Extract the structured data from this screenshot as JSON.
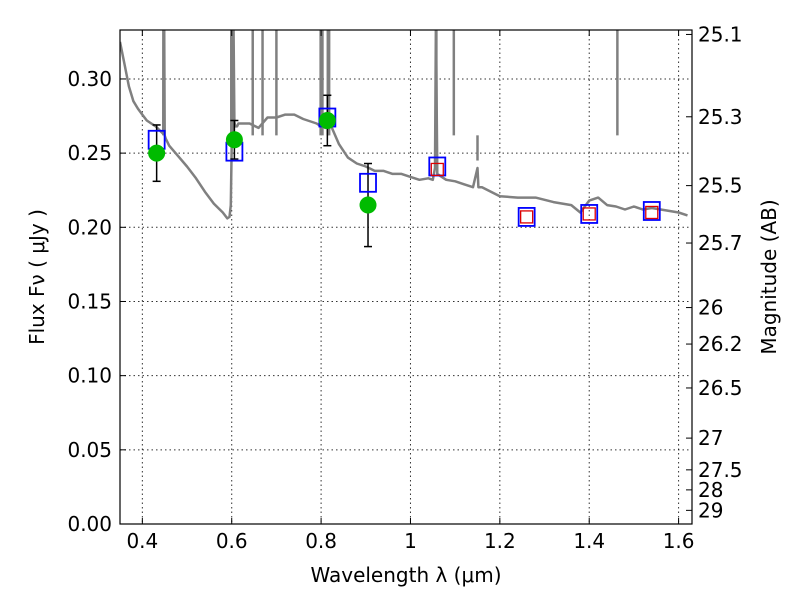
{
  "chart_data": {
    "type": "scatter",
    "xlabel": "Wavelength  λ (μm)",
    "ylabel": "Flux  Fν  ( μJy )",
    "ylabel_right": "Magnitude (AB)",
    "xlim": [
      0.35,
      1.63
    ],
    "ylim": [
      0.0,
      0.333
    ],
    "grid": true,
    "x_ticks": [
      {
        "value": 0.4,
        "label": "0.4"
      },
      {
        "value": 0.6,
        "label": "0.6"
      },
      {
        "value": 0.8,
        "label": "0.8"
      },
      {
        "value": 1.0,
        "label": "1"
      },
      {
        "value": 1.2,
        "label": "1.2"
      },
      {
        "value": 1.4,
        "label": "1.4"
      },
      {
        "value": 1.6,
        "label": "1.6"
      }
    ],
    "y_ticks": [
      {
        "value": 0.0,
        "label": "0.00"
      },
      {
        "value": 0.05,
        "label": "0.05"
      },
      {
        "value": 0.1,
        "label": "0.10"
      },
      {
        "value": 0.15,
        "label": "0.15"
      },
      {
        "value": 0.2,
        "label": "0.20"
      },
      {
        "value": 0.25,
        "label": "0.25"
      },
      {
        "value": 0.3,
        "label": "0.30"
      }
    ],
    "right_ticks": [
      {
        "flux": 0.33,
        "label": "25.1"
      },
      {
        "flux": 0.2745,
        "label": "25.3"
      },
      {
        "flux": 0.2281,
        "label": "25.5"
      },
      {
        "flux": 0.1894,
        "label": "25.7"
      },
      {
        "flux": 0.1459,
        "label": "26"
      },
      {
        "flux": 0.1213,
        "label": "26.2"
      },
      {
        "flux": 0.0917,
        "label": "26.5"
      },
      {
        "flux": 0.0579,
        "label": "27"
      },
      {
        "flux": 0.0365,
        "label": "27.5"
      },
      {
        "flux": 0.023,
        "label": "28"
      },
      {
        "flux": 0.0092,
        "label": "29"
      }
    ],
    "series": [
      {
        "kind": "model_spectrum",
        "color": "#808080",
        "x": [
          0.35,
          0.36,
          0.37,
          0.38,
          0.39,
          0.4,
          0.41,
          0.42,
          0.43,
          0.44,
          0.447,
          0.448,
          0.449,
          0.45,
          0.452,
          0.46,
          0.48,
          0.5,
          0.52,
          0.54,
          0.56,
          0.58,
          0.59,
          0.595,
          0.598,
          0.6,
          0.602,
          0.604,
          0.606,
          0.608,
          0.612,
          0.615,
          0.62,
          0.64,
          0.66,
          0.68,
          0.7,
          0.72,
          0.74,
          0.76,
          0.78,
          0.79,
          0.8,
          0.81,
          0.82,
          0.84,
          0.86,
          0.88,
          0.9,
          0.92,
          0.94,
          0.96,
          0.98,
          1.0,
          1.02,
          1.04,
          1.05,
          1.055,
          1.057,
          1.06,
          1.07,
          1.08,
          1.1,
          1.12,
          1.14,
          1.15,
          1.152,
          1.16,
          1.2,
          1.24,
          1.28,
          1.32,
          1.34,
          1.36,
          1.38,
          1.4,
          1.42,
          1.44,
          1.46,
          1.48,
          1.5,
          1.52,
          1.54,
          1.56,
          1.58,
          1.6,
          1.62
        ],
        "y": [
          0.325,
          0.31,
          0.295,
          0.285,
          0.28,
          0.276,
          0.272,
          0.27,
          0.268,
          0.265,
          0.263,
          0.338,
          0.338,
          0.262,
          0.26,
          0.255,
          0.248,
          0.241,
          0.233,
          0.224,
          0.216,
          0.21,
          0.206,
          0.207,
          0.215,
          0.255,
          0.338,
          0.338,
          0.271,
          0.268,
          0.268,
          0.27,
          0.27,
          0.27,
          0.267,
          0.274,
          0.274,
          0.276,
          0.276,
          0.273,
          0.271,
          0.27,
          0.268,
          0.267,
          0.27,
          0.256,
          0.247,
          0.243,
          0.241,
          0.238,
          0.238,
          0.236,
          0.236,
          0.234,
          0.232,
          0.233,
          0.232,
          0.24,
          0.338,
          0.236,
          0.234,
          0.232,
          0.231,
          0.229,
          0.227,
          0.24,
          0.227,
          0.227,
          0.221,
          0.22,
          0.22,
          0.217,
          0.216,
          0.215,
          0.21,
          0.218,
          0.22,
          0.215,
          0.214,
          0.212,
          0.214,
          0.212,
          0.213,
          0.212,
          0.211,
          0.21,
          0.208
        ]
      },
      {
        "kind": "model_peaks",
        "color": "#808080",
        "x": [
          0.447,
          0.599,
          0.603,
          0.647,
          0.669,
          0.7,
          0.799,
          0.803,
          0.815,
          0.818,
          1.058,
          1.097,
          1.15,
          1.463
        ],
        "y": [
          0.338,
          0.338,
          0.338,
          0.338,
          0.338,
          0.338,
          0.338,
          0.338,
          0.338,
          0.338,
          0.338,
          0.338,
          0.245,
          0.338
        ]
      },
      {
        "kind": "observed",
        "color": "#00bb00",
        "x": [
          0.432,
          0.606,
          0.814,
          0.905
        ],
        "y": [
          0.25,
          0.259,
          0.272,
          0.215
        ],
        "yerr": [
          0.019,
          0.013,
          0.017,
          0.028
        ]
      },
      {
        "kind": "model_photometry",
        "color": "#0000ff",
        "x": [
          0.432,
          0.606,
          0.814,
          0.905,
          1.06,
          1.26,
          1.4,
          1.54
        ],
        "y": [
          0.259,
          0.251,
          0.274,
          0.23,
          0.241,
          0.207,
          0.209,
          0.211
        ]
      },
      {
        "kind": "model_photometry_nir",
        "color": "#dd0000",
        "x": [
          1.06,
          1.26,
          1.4,
          1.54
        ],
        "y": [
          0.239,
          0.207,
          0.209,
          0.21
        ]
      }
    ]
  }
}
